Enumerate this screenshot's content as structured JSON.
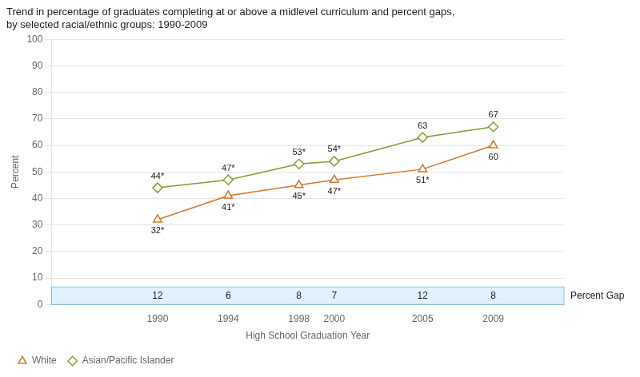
{
  "chart_data": {
    "type": "line",
    "title": [
      "Trend in percentage of graduates completing at or above a midlevel curriculum and percent gaps,",
      "by selected racial/ethnic groups: 1990-2009"
    ],
    "xlabel": "High School Graduation Year",
    "ylabel": "Percent",
    "x": [
      1990,
      1994,
      1998,
      2000,
      2005,
      2009
    ],
    "series": [
      {
        "name": "White",
        "color": "#D4752A",
        "marker": "triangle",
        "values": [
          32,
          41,
          45,
          47,
          51,
          60
        ],
        "value_labels": [
          "32*",
          "41*",
          "45*",
          "47*",
          "51*",
          "60"
        ]
      },
      {
        "name": "Asian/Pacific Islander",
        "color": "#7DA030",
        "marker": "diamond",
        "values": [
          44,
          47,
          53,
          54,
          63,
          67
        ],
        "value_labels": [
          "44*",
          "47*",
          "53*",
          "54*",
          "63",
          "67"
        ]
      }
    ],
    "xlim": [
      1984,
      2013
    ],
    "xticks": [
      1990,
      1994,
      1998,
      2000,
      2005,
      2009
    ],
    "ylim": [
      0,
      100
    ],
    "yticks": [
      0,
      10,
      20,
      30,
      40,
      50,
      60,
      70,
      80,
      90,
      100
    ],
    "grid": "y",
    "legend": "lower left",
    "data_labels": true,
    "percent_gap_label": "Percent Gap",
    "percent_gaps": [
      12,
      6,
      8,
      7,
      12,
      8
    ]
  }
}
